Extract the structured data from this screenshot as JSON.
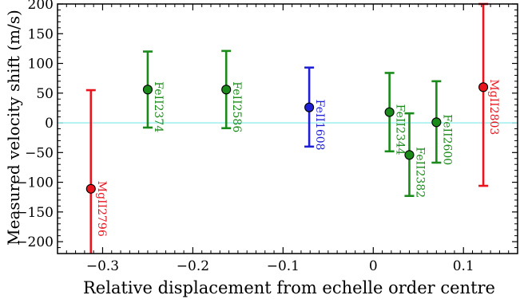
{
  "chart_data": {
    "type": "scatter",
    "xlabel": "Relative displacement from echelle order centre",
    "ylabel": "Measured velocity shift (m/s)",
    "xlim": [
      -0.35,
      0.16
    ],
    "ylim": [
      -220,
      200
    ],
    "xticks": [
      -0.3,
      -0.2,
      -0.1,
      0,
      0.1
    ],
    "xtick_labels": [
      "−0.3",
      "−0.2",
      "−0.1",
      "0",
      "0.1"
    ],
    "yticks": [
      -200,
      -150,
      -100,
      -50,
      0,
      50,
      100,
      150,
      200
    ],
    "ytick_labels": [
      "−200",
      "−150",
      "−100",
      "−50",
      "0",
      "50",
      "100",
      "150",
      "200"
    ],
    "reference_line": {
      "y": 0,
      "color": "#7fe8e8"
    },
    "grid": false,
    "legend": "none",
    "points": [
      {
        "label": "MgII2796",
        "x": -0.313,
        "y": -111,
        "err_low": -222,
        "err_high": 55,
        "color": "#e8141e"
      },
      {
        "label": "FeII2374",
        "x": -0.25,
        "y": 56,
        "err_low": -8,
        "err_high": 120,
        "color": "#1a8a1a"
      },
      {
        "label": "FeII2586",
        "x": -0.163,
        "y": 56,
        "err_low": -9,
        "err_high": 121,
        "color": "#1a8a1a"
      },
      {
        "label": "FeII1608",
        "x": -0.071,
        "y": 26,
        "err_low": -40,
        "err_high": 93,
        "color": "#1f1fd6"
      },
      {
        "label": "FeII2344",
        "x": 0.018,
        "y": 18,
        "err_low": -48,
        "err_high": 84,
        "color": "#1a8a1a"
      },
      {
        "label": "FeII2382",
        "x": 0.04,
        "y": -54,
        "err_low": -123,
        "err_high": 16,
        "color": "#1a8a1a"
      },
      {
        "label": "FeII2600",
        "x": 0.07,
        "y": 1,
        "err_low": -67,
        "err_high": 70,
        "color": "#1a8a1a"
      },
      {
        "label": "MgII2803",
        "x": 0.122,
        "y": 60,
        "err_low": -106,
        "err_high": 200,
        "color": "#e8141e"
      }
    ]
  }
}
